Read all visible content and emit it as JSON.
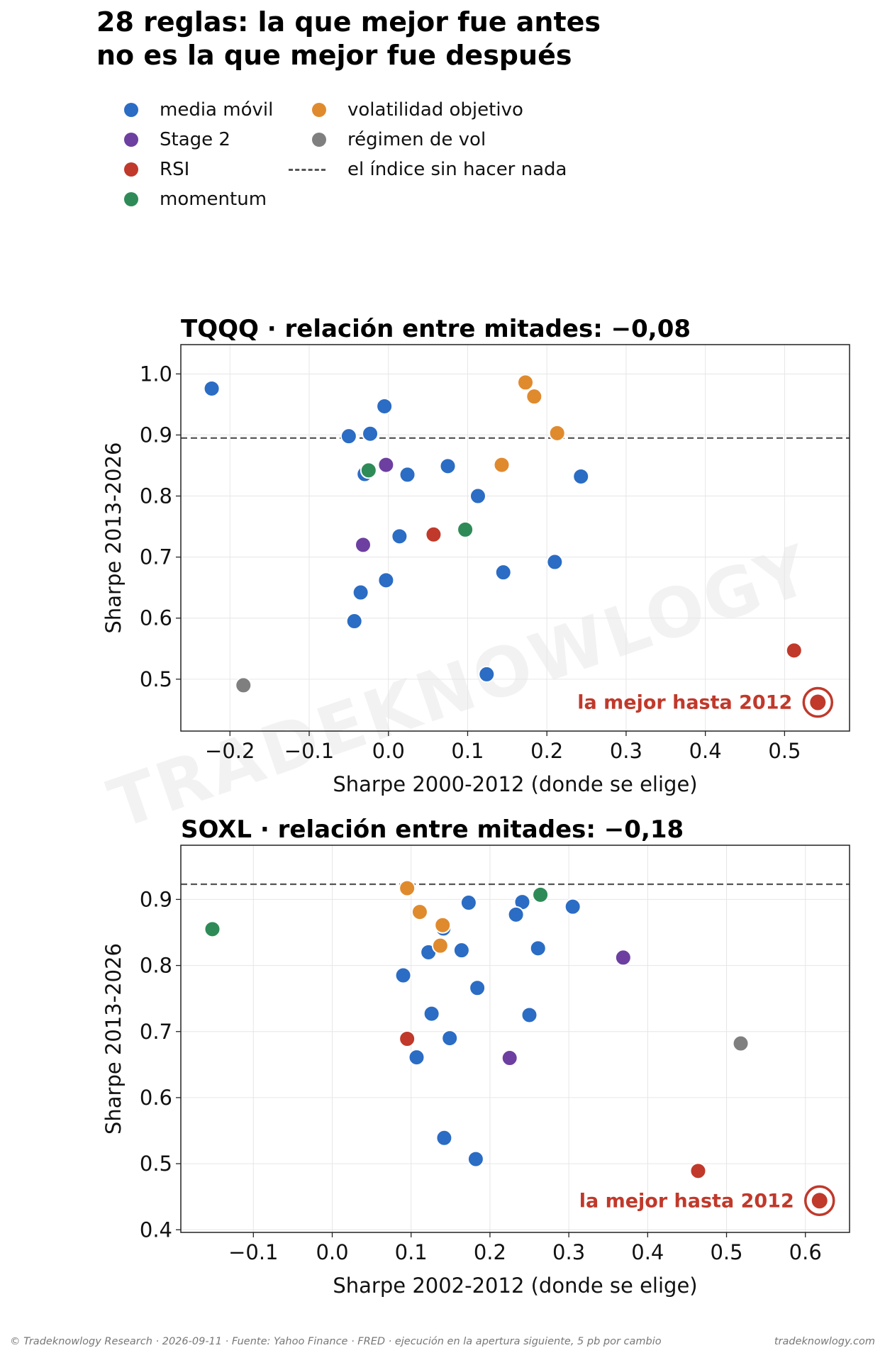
{
  "title": {
    "line1": "28 reglas: la que mejor fue antes",
    "line2": "no es la que mejor fue después"
  },
  "legend": {
    "items": [
      {
        "label": "media móvil",
        "color": "#2b6cc4",
        "type": "dot"
      },
      {
        "label": "Stage 2",
        "color": "#6d3fa0",
        "type": "dot"
      },
      {
        "label": "RSI",
        "color": "#c0392b",
        "type": "dot"
      },
      {
        "label": "momentum",
        "color": "#2e8b57",
        "type": "dot"
      },
      {
        "label": "volatilidad objetivo",
        "color": "#e08a2e",
        "type": "dot"
      },
      {
        "label": "régimen de vol",
        "color": "#7f7f7f",
        "type": "dot"
      },
      {
        "label": "el índice sin hacer nada",
        "color": "#555555",
        "type": "dashed-line"
      }
    ]
  },
  "watermark": "TRADEKNOWLOGY",
  "colors": {
    "media": "#2b6cc4",
    "stage2": "#6d3fa0",
    "rsi": "#c0392b",
    "momentum": "#2e8b57",
    "vol": "#e08a2e",
    "regimen": "#7f7f7f",
    "hline": "#555555",
    "highlight": "#c0392b"
  },
  "chart_data": [
    {
      "type": "scatter",
      "title": "TQQQ · relación entre mitades: −0,08",
      "xlabel": "Sharpe 2000-2012 (donde se elige)",
      "ylabel": "Sharpe 2013-2026",
      "xlim": [
        -0.262,
        0.582
      ],
      "ylim": [
        0.415,
        1.048
      ],
      "xticks": [
        -0.2,
        -0.1,
        0.0,
        0.1,
        0.2,
        0.3,
        0.4,
        0.5
      ],
      "xtick_labels": [
        "−0.2",
        "−0.1",
        "0.0",
        "0.1",
        "0.2",
        "0.3",
        "0.4",
        "0.5"
      ],
      "yticks": [
        0.5,
        0.6,
        0.7,
        0.8,
        0.9,
        1.0
      ],
      "ytick_labels": [
        "0.5",
        "0.6",
        "0.7",
        "0.8",
        "0.9",
        "1.0"
      ],
      "grid": true,
      "hline": 0.895,
      "annotation": "la mejor hasta 2012",
      "highlight": {
        "x": 0.542,
        "y": 0.462
      },
      "points": [
        {
          "x": -0.223,
          "y": 0.976,
          "group": "media"
        },
        {
          "x": -0.005,
          "y": 0.947,
          "group": "media"
        },
        {
          "x": -0.05,
          "y": 0.898,
          "group": "media"
        },
        {
          "x": -0.023,
          "y": 0.902,
          "group": "media"
        },
        {
          "x": -0.03,
          "y": 0.836,
          "group": "media"
        },
        {
          "x": 0.024,
          "y": 0.835,
          "group": "media"
        },
        {
          "x": 0.075,
          "y": 0.849,
          "group": "media"
        },
        {
          "x": 0.113,
          "y": 0.8,
          "group": "media"
        },
        {
          "x": 0.243,
          "y": 0.832,
          "group": "media"
        },
        {
          "x": 0.014,
          "y": 0.734,
          "group": "media"
        },
        {
          "x": 0.145,
          "y": 0.675,
          "group": "media"
        },
        {
          "x": 0.21,
          "y": 0.692,
          "group": "media"
        },
        {
          "x": -0.035,
          "y": 0.642,
          "group": "media"
        },
        {
          "x": -0.003,
          "y": 0.662,
          "group": "media"
        },
        {
          "x": -0.043,
          "y": 0.595,
          "group": "media"
        },
        {
          "x": 0.124,
          "y": 0.508,
          "group": "media"
        },
        {
          "x": -0.003,
          "y": 0.851,
          "group": "stage2"
        },
        {
          "x": -0.032,
          "y": 0.72,
          "group": "stage2"
        },
        {
          "x": 0.057,
          "y": 0.737,
          "group": "rsi"
        },
        {
          "x": 0.512,
          "y": 0.547,
          "group": "rsi"
        },
        {
          "x": -0.025,
          "y": 0.842,
          "group": "momentum"
        },
        {
          "x": 0.097,
          "y": 0.745,
          "group": "momentum"
        },
        {
          "x": 0.173,
          "y": 0.986,
          "group": "vol"
        },
        {
          "x": 0.184,
          "y": 0.963,
          "group": "vol"
        },
        {
          "x": 0.213,
          "y": 0.903,
          "group": "vol"
        },
        {
          "x": 0.143,
          "y": 0.851,
          "group": "vol"
        },
        {
          "x": -0.183,
          "y": 0.49,
          "group": "regimen"
        }
      ]
    },
    {
      "type": "scatter",
      "title": "SOXL · relación entre mitades: −0,18",
      "xlabel": "Sharpe 2002-2012 (donde se elige)",
      "ylabel": "Sharpe 2013-2026",
      "xlim": [
        -0.192,
        0.656
      ],
      "ylim": [
        0.396,
        0.982
      ],
      "xticks": [
        -0.1,
        0.0,
        0.1,
        0.2,
        0.3,
        0.4,
        0.5,
        0.6
      ],
      "xtick_labels": [
        "−0.1",
        "0.0",
        "0.1",
        "0.2",
        "0.3",
        "0.4",
        "0.5",
        "0.6"
      ],
      "yticks": [
        0.4,
        0.5,
        0.6,
        0.7,
        0.8,
        0.9
      ],
      "ytick_labels": [
        "0.4",
        "0.5",
        "0.6",
        "0.7",
        "0.8",
        "0.9"
      ],
      "grid": true,
      "hline": 0.923,
      "annotation": "la mejor hasta 2012",
      "highlight": {
        "x": 0.618,
        "y": 0.444
      },
      "points": [
        {
          "x": 0.173,
          "y": 0.895,
          "group": "media"
        },
        {
          "x": 0.241,
          "y": 0.896,
          "group": "media"
        },
        {
          "x": 0.233,
          "y": 0.877,
          "group": "media"
        },
        {
          "x": 0.305,
          "y": 0.889,
          "group": "media"
        },
        {
          "x": 0.141,
          "y": 0.856,
          "group": "media"
        },
        {
          "x": 0.122,
          "y": 0.82,
          "group": "media"
        },
        {
          "x": 0.164,
          "y": 0.823,
          "group": "media"
        },
        {
          "x": 0.261,
          "y": 0.826,
          "group": "media"
        },
        {
          "x": 0.09,
          "y": 0.785,
          "group": "media"
        },
        {
          "x": 0.184,
          "y": 0.766,
          "group": "media"
        },
        {
          "x": 0.126,
          "y": 0.727,
          "group": "media"
        },
        {
          "x": 0.25,
          "y": 0.725,
          "group": "media"
        },
        {
          "x": 0.149,
          "y": 0.69,
          "group": "media"
        },
        {
          "x": 0.107,
          "y": 0.661,
          "group": "media"
        },
        {
          "x": 0.142,
          "y": 0.539,
          "group": "media"
        },
        {
          "x": 0.182,
          "y": 0.507,
          "group": "media"
        },
        {
          "x": 0.225,
          "y": 0.66,
          "group": "stage2"
        },
        {
          "x": 0.369,
          "y": 0.812,
          "group": "stage2"
        },
        {
          "x": 0.095,
          "y": 0.689,
          "group": "rsi"
        },
        {
          "x": 0.464,
          "y": 0.489,
          "group": "rsi"
        },
        {
          "x": -0.152,
          "y": 0.855,
          "group": "momentum"
        },
        {
          "x": 0.264,
          "y": 0.907,
          "group": "momentum"
        },
        {
          "x": 0.095,
          "y": 0.917,
          "group": "vol"
        },
        {
          "x": 0.111,
          "y": 0.881,
          "group": "vol"
        },
        {
          "x": 0.14,
          "y": 0.861,
          "group": "vol"
        },
        {
          "x": 0.137,
          "y": 0.83,
          "group": "vol"
        },
        {
          "x": 0.518,
          "y": 0.682,
          "group": "regimen"
        }
      ]
    }
  ],
  "footer": {
    "left": "© Tradeknowlogy Research   ·   2026-09-11   ·   Fuente: Yahoo Finance · FRED · ejecución en la apertura siguiente, 5 pb por cambio",
    "right": "tradeknowlogy.com"
  }
}
